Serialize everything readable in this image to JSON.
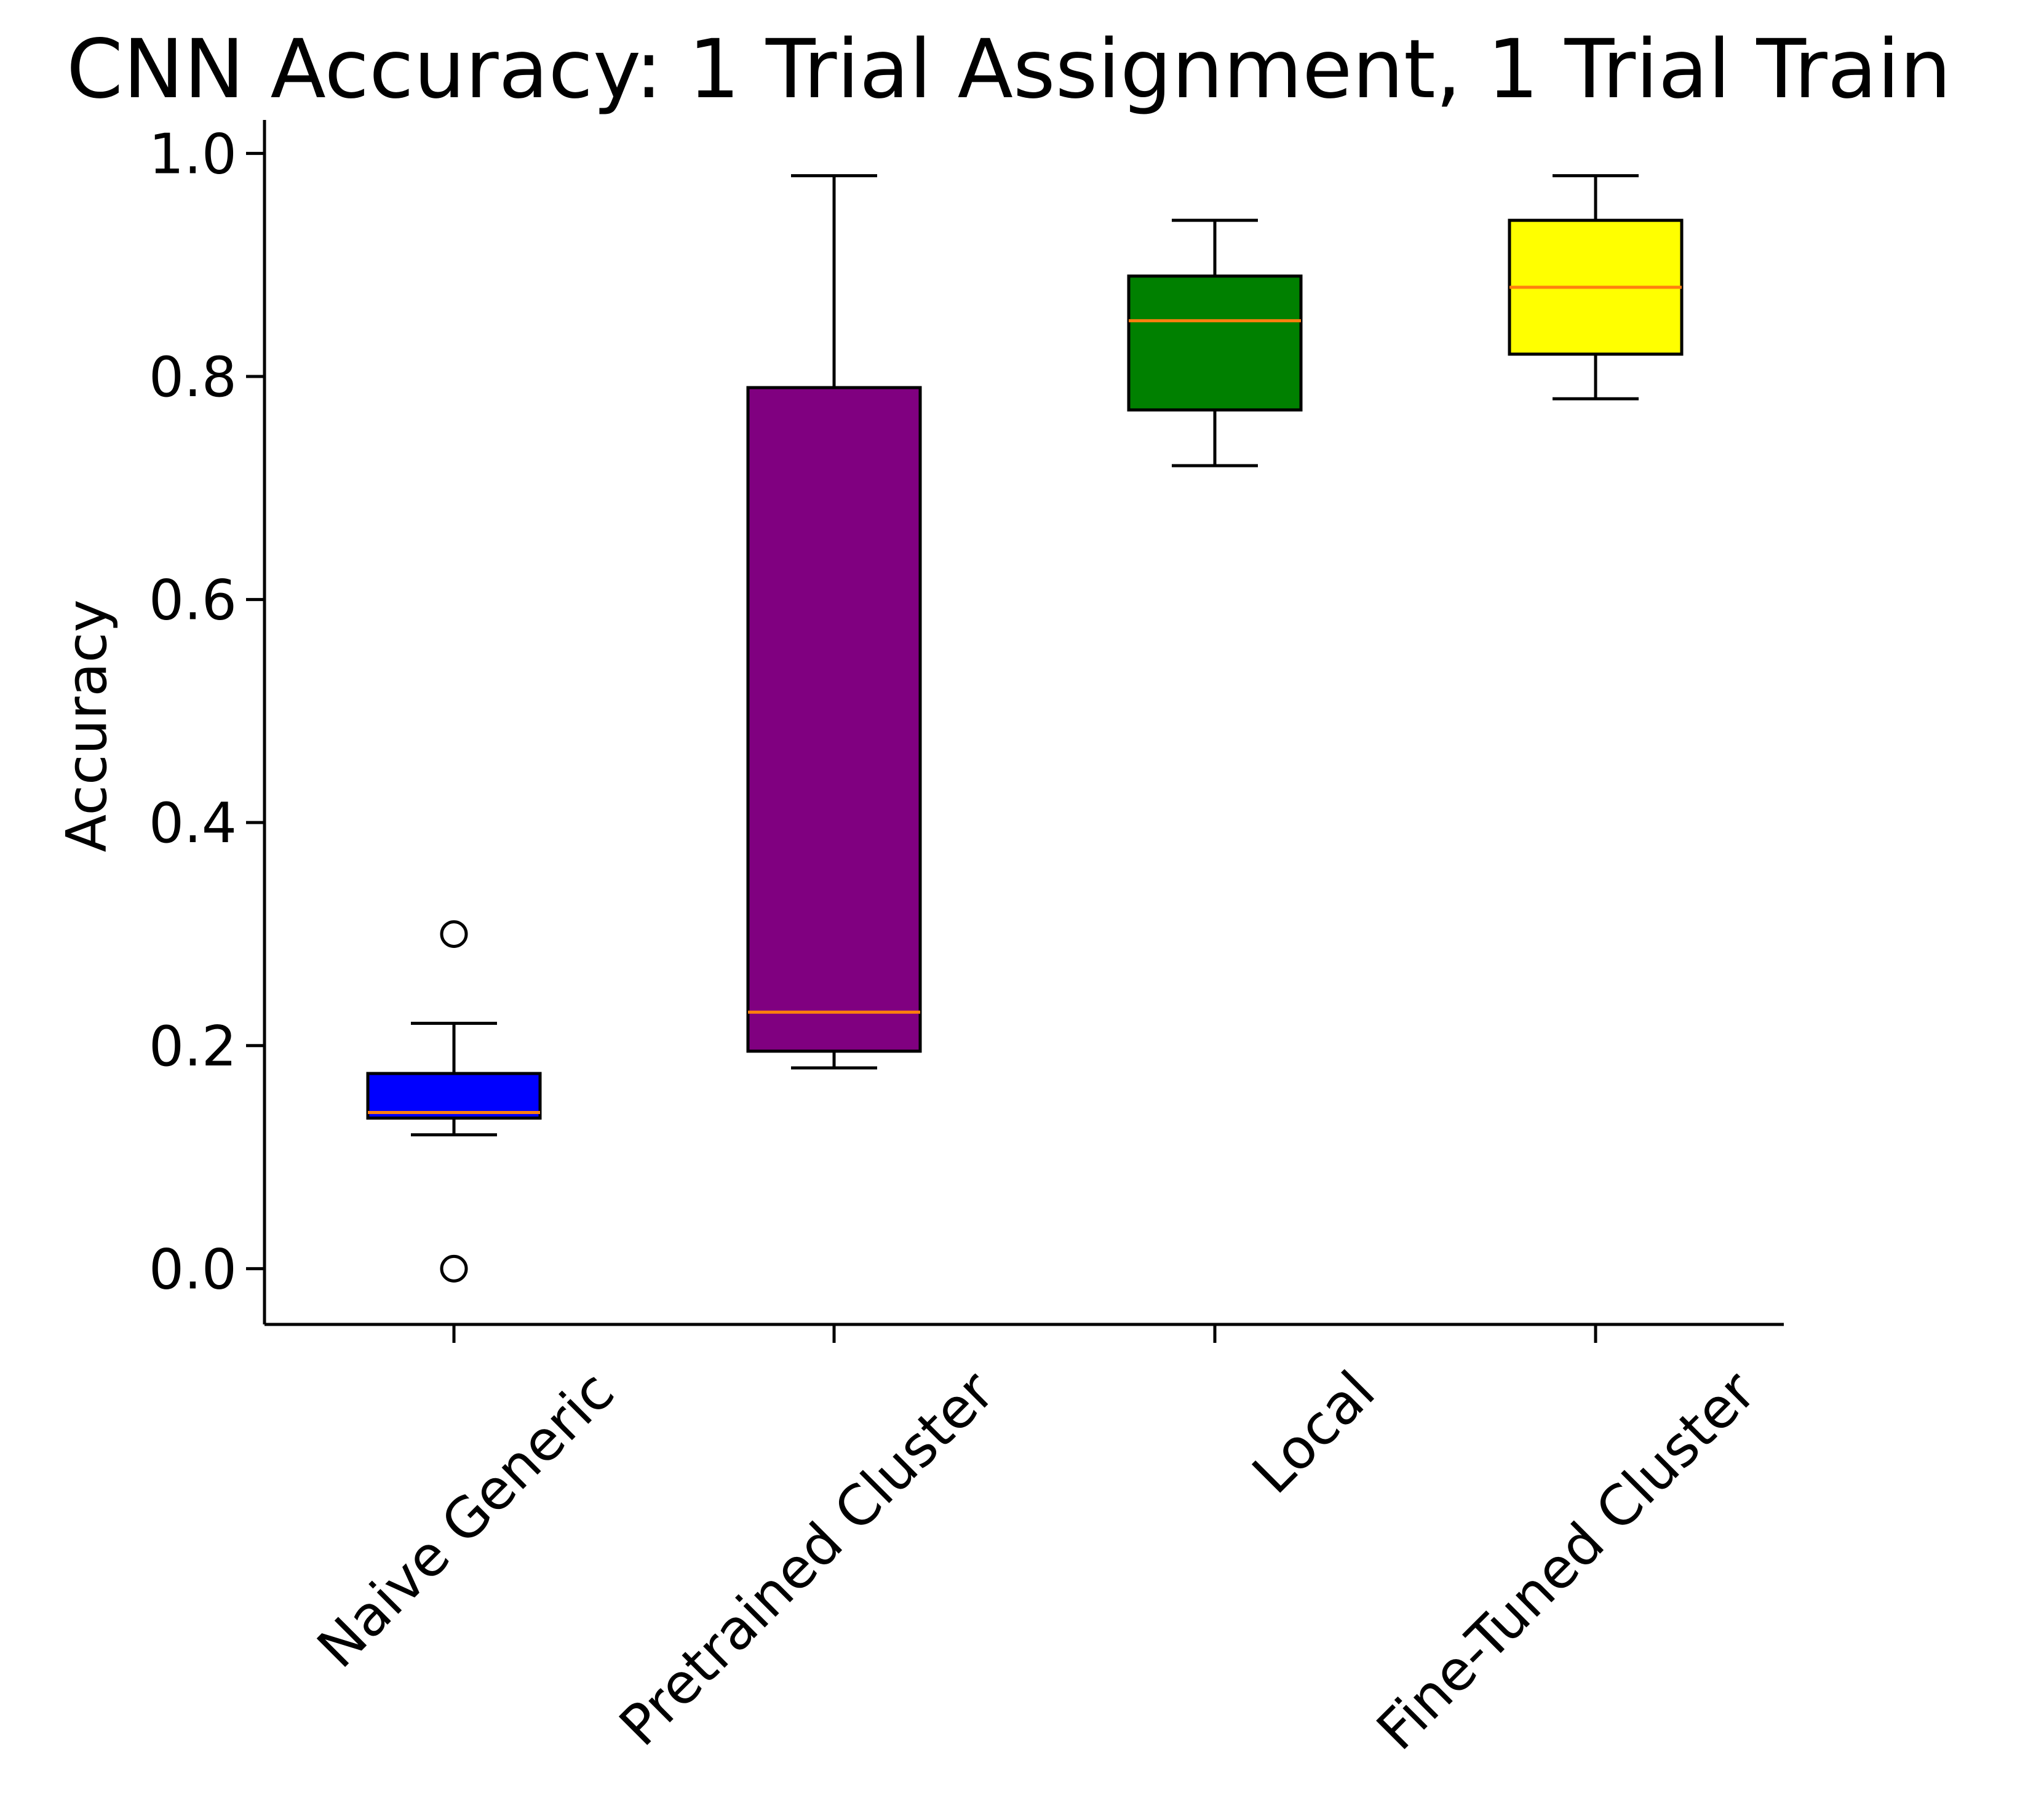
{
  "chart_data": {
    "type": "box",
    "title": "CNN Accuracy: 1 Trial Assignment, 1 Trial Train",
    "xlabel": "",
    "ylabel": "Accuracy",
    "ylim": [
      -0.05,
      1.03
    ],
    "yticks": [
      "0.0",
      "0.2",
      "0.4",
      "0.6",
      "0.8",
      "1.0"
    ],
    "grid": false,
    "median_color": "#ff7f0e",
    "categories": [
      "Naive Generic",
      "Pretrained Cluster",
      "Local",
      "Fine-Tuned Cluster"
    ],
    "boxes": [
      {
        "category": "Naive Generic",
        "color": "#0000ff",
        "whisker_low": 0.12,
        "q1": 0.135,
        "median": 0.14,
        "q3": 0.175,
        "whisker_high": 0.22,
        "outliers": [
          0.3,
          0.0
        ]
      },
      {
        "category": "Pretrained Cluster",
        "color": "#800080",
        "whisker_low": 0.18,
        "q1": 0.195,
        "median": 0.23,
        "q3": 0.79,
        "whisker_high": 0.98,
        "outliers": []
      },
      {
        "category": "Local",
        "color": "#008000",
        "whisker_low": 0.72,
        "q1": 0.77,
        "median": 0.85,
        "q3": 0.89,
        "whisker_high": 0.94,
        "outliers": []
      },
      {
        "category": "Fine-Tuned Cluster",
        "color": "#ffff00",
        "whisker_low": 0.78,
        "q1": 0.82,
        "median": 0.88,
        "q3": 0.94,
        "whisker_high": 0.98,
        "outliers": []
      }
    ]
  }
}
